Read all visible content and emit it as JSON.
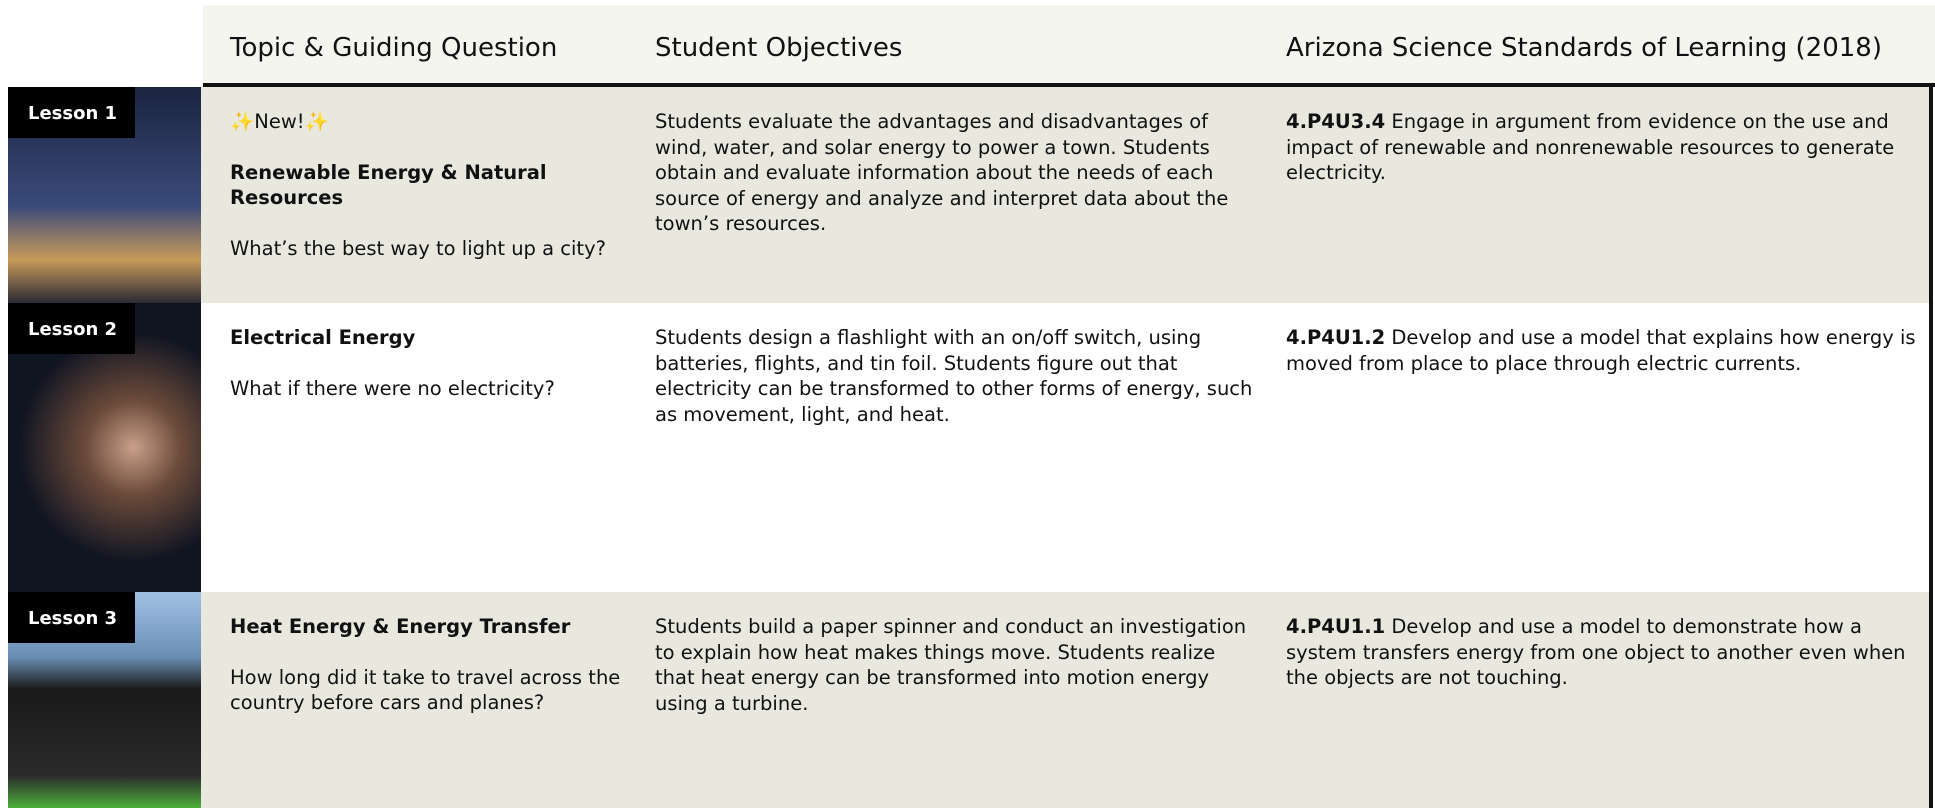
{
  "header": {
    "columns": [
      "Topic & Guiding Question",
      "Student Objectives",
      "Arizona Science Standards of Learning (2018)"
    ]
  },
  "rows": [
    {
      "lesson": "Lesson 1",
      "badge": "✨New!✨",
      "title": "Renewable Energy & Natural Resources",
      "question": "What’s the best way to light up a city?",
      "objectives": "Students evaluate the advantages and disadvantages of wind, water, and solar energy to power a town. Students obtain and evaluate information about the needs of each source of energy and analyze and interpret data about the town’s resources.",
      "standard_code": "4.P4U3.4",
      "standard_text": "Engage in argument from evidence on the use and impact of renewable and nonrenewable resources to generate electricity."
    },
    {
      "lesson": "Lesson 2",
      "title": "Electrical Energy",
      "question": "What if there were no electricity?",
      "objectives": "Students design a flashlight with an on/off switch, using batteries, flights, and tin foil. Students figure out that electricity can be transformed to other forms of energy, such as movement, light, and heat.",
      "standard_code": "4.P4U1.2",
      "standard_text": "Develop and use a model that explains how energy is moved from place to place through electric currents."
    },
    {
      "lesson": "Lesson 3",
      "title": "Heat Energy & Energy Transfer",
      "question": "How long did it take to travel across the country before cars and planes?",
      "objectives": "Students build a paper spinner and conduct an investigation to explain how heat makes things move. Students realize that heat energy can be transformed into motion energy using a turbine.",
      "standard_code": "4.P4U1.1",
      "standard_text": "Develop and use a model to demonstrate how a system transfers energy from one object to another even when the objects are not touching."
    }
  ]
}
